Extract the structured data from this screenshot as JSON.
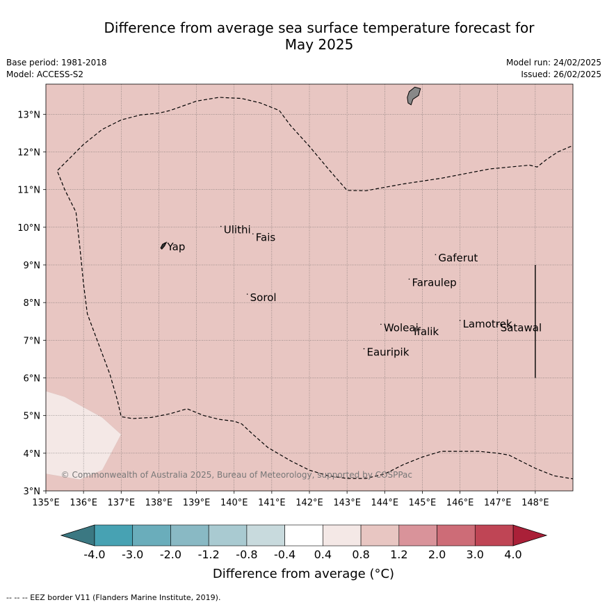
{
  "title_line1": "Difference from average sea surface temperature forecast for",
  "title_line2": "May 2025",
  "meta_left": {
    "base_period": "Base period: 1981-2018",
    "model": "Model: ACCESS-S2"
  },
  "meta_right": {
    "model_run": "Model run: 24/02/2025",
    "issued": "Issued: 26/02/2025"
  },
  "map": {
    "lon_range": [
      135,
      149
    ],
    "lat_range": [
      3,
      13.8
    ],
    "background_color": "#e8c6c2",
    "lon_ticks": [
      "135°E",
      "136°E",
      "137°E",
      "138°E",
      "139°E",
      "140°E",
      "141°E",
      "142°E",
      "143°E",
      "144°E",
      "145°E",
      "146°E",
      "147°E",
      "148°E"
    ],
    "lat_ticks": [
      "3°N",
      "4°N",
      "5°N",
      "6°N",
      "7°N",
      "8°N",
      "9°N",
      "10°N",
      "11°N",
      "12°N",
      "13°N"
    ],
    "places": [
      {
        "name": "Yap",
        "lon": 138.15,
        "lat": 9.5
      },
      {
        "name": "Ulithi",
        "lon": 139.65,
        "lat": 9.95
      },
      {
        "name": "Fais",
        "lon": 140.5,
        "lat": 9.75
      },
      {
        "name": "Gaferut",
        "lon": 145.35,
        "lat": 9.2
      },
      {
        "name": "Faraulep",
        "lon": 144.65,
        "lat": 8.55
      },
      {
        "name": "Sorol",
        "lon": 140.35,
        "lat": 8.15
      },
      {
        "name": "Lamotrek",
        "lon": 146.0,
        "lat": 7.45
      },
      {
        "name": "Woleai",
        "lon": 143.9,
        "lat": 7.35
      },
      {
        "name": "Ifalik",
        "lon": 144.7,
        "lat": 7.25
      },
      {
        "name": "Satawal",
        "lon": 147.0,
        "lat": 7.35
      },
      {
        "name": "Eauripik",
        "lon": 143.45,
        "lat": 6.7
      }
    ],
    "copyright": "© Commonwealth of Australia 2025, Bureau of Meteorology, supported by COSPPac"
  },
  "colorbar": {
    "labels": [
      "-4.0",
      "-3.0",
      "-2.0",
      "-1.2",
      "-0.8",
      "-0.4",
      "0.4",
      "0.8",
      "1.2",
      "2.0",
      "3.0",
      "4.0"
    ],
    "colors": [
      "#47a2b3",
      "#6aadbb",
      "#89b9c4",
      "#a9cad1",
      "#c8dadd",
      "#ffffff",
      "#f4e8e6",
      "#e8c6c2",
      "#d9939a",
      "#cd6c77",
      "#bf4555"
    ],
    "low_color": "#3b7882",
    "high_color": "#aa2038",
    "label": "Difference from average (°C)"
  },
  "footer": "--  --  -- EEZ border V11 (Flanders Marine Institute, 2019)."
}
